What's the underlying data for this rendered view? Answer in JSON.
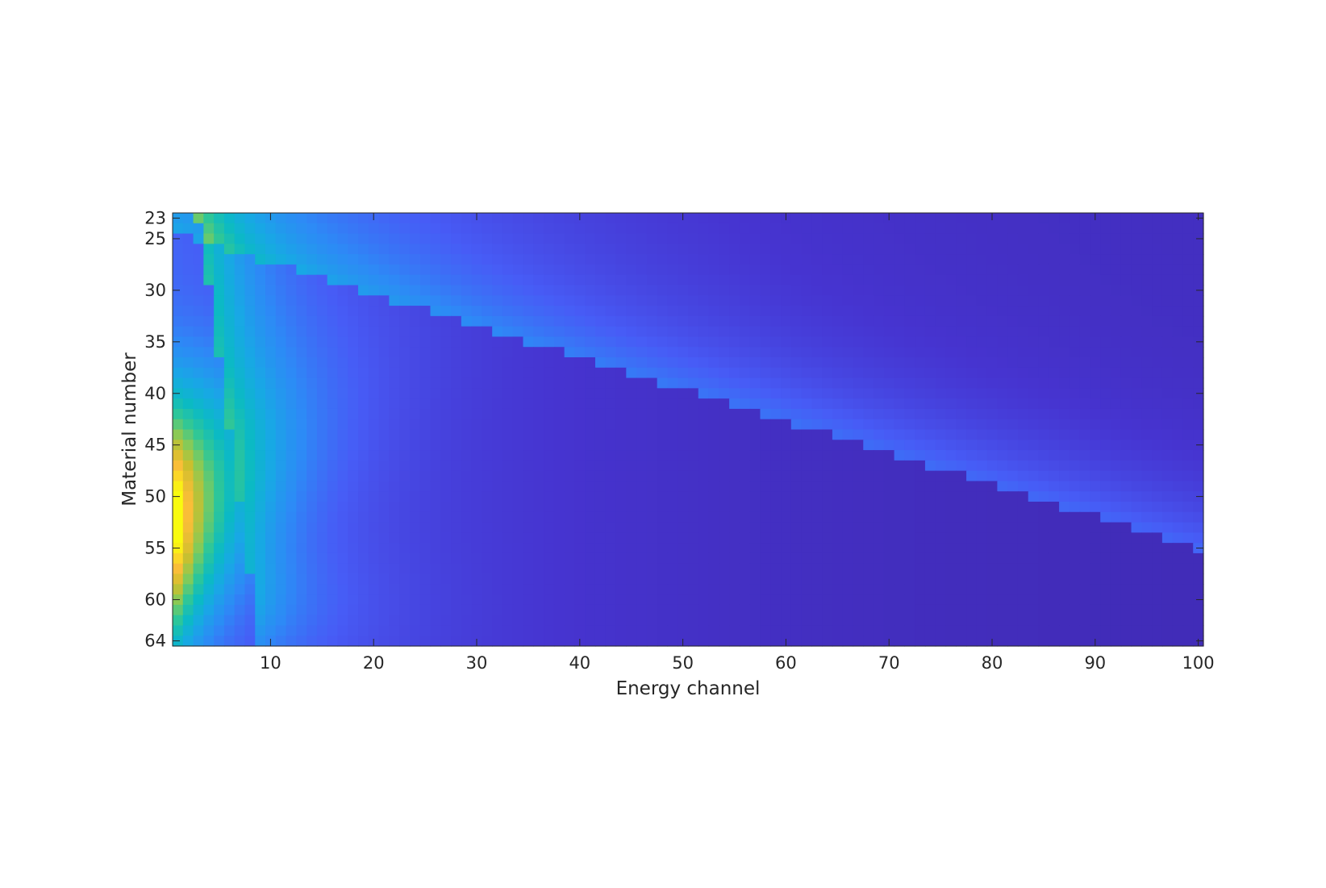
{
  "chart_data": {
    "type": "heatmap",
    "title": "",
    "xlabel": "Energy channel",
    "ylabel": "Material number",
    "x_range": [
      1,
      100
    ],
    "y_range": [
      23,
      64
    ],
    "y_axis_direction": "top-to-bottom",
    "x_ticks": [
      10,
      20,
      30,
      40,
      50,
      60,
      70,
      80,
      90,
      100
    ],
    "y_ticks": [
      23,
      25,
      30,
      35,
      40,
      45,
      50,
      55,
      60,
      64
    ],
    "colormap": "parula",
    "colorbar": false,
    "grid": false,
    "description_of_values": "Relative intensity per (energy channel, material number). A bright maximum near channels 1–3 at materials 50–54, a sharp diagonal edge running from (channel ~3, material 23) to (channel ~9, material 64) at low channels, and a second diagonal edge running from about (channel ~10, material 27) to (channel ~100, material 55) separating a brighter band above from a darker region below.",
    "peak": {
      "energy_channel": 1,
      "material_number": 52,
      "value": 1.0
    },
    "edge_low": {
      "start": [
        3,
        23
      ],
      "end": [
        9,
        64
      ]
    },
    "edge_high": {
      "start": [
        9,
        27
      ],
      "end": [
        100,
        55
      ]
    }
  }
}
